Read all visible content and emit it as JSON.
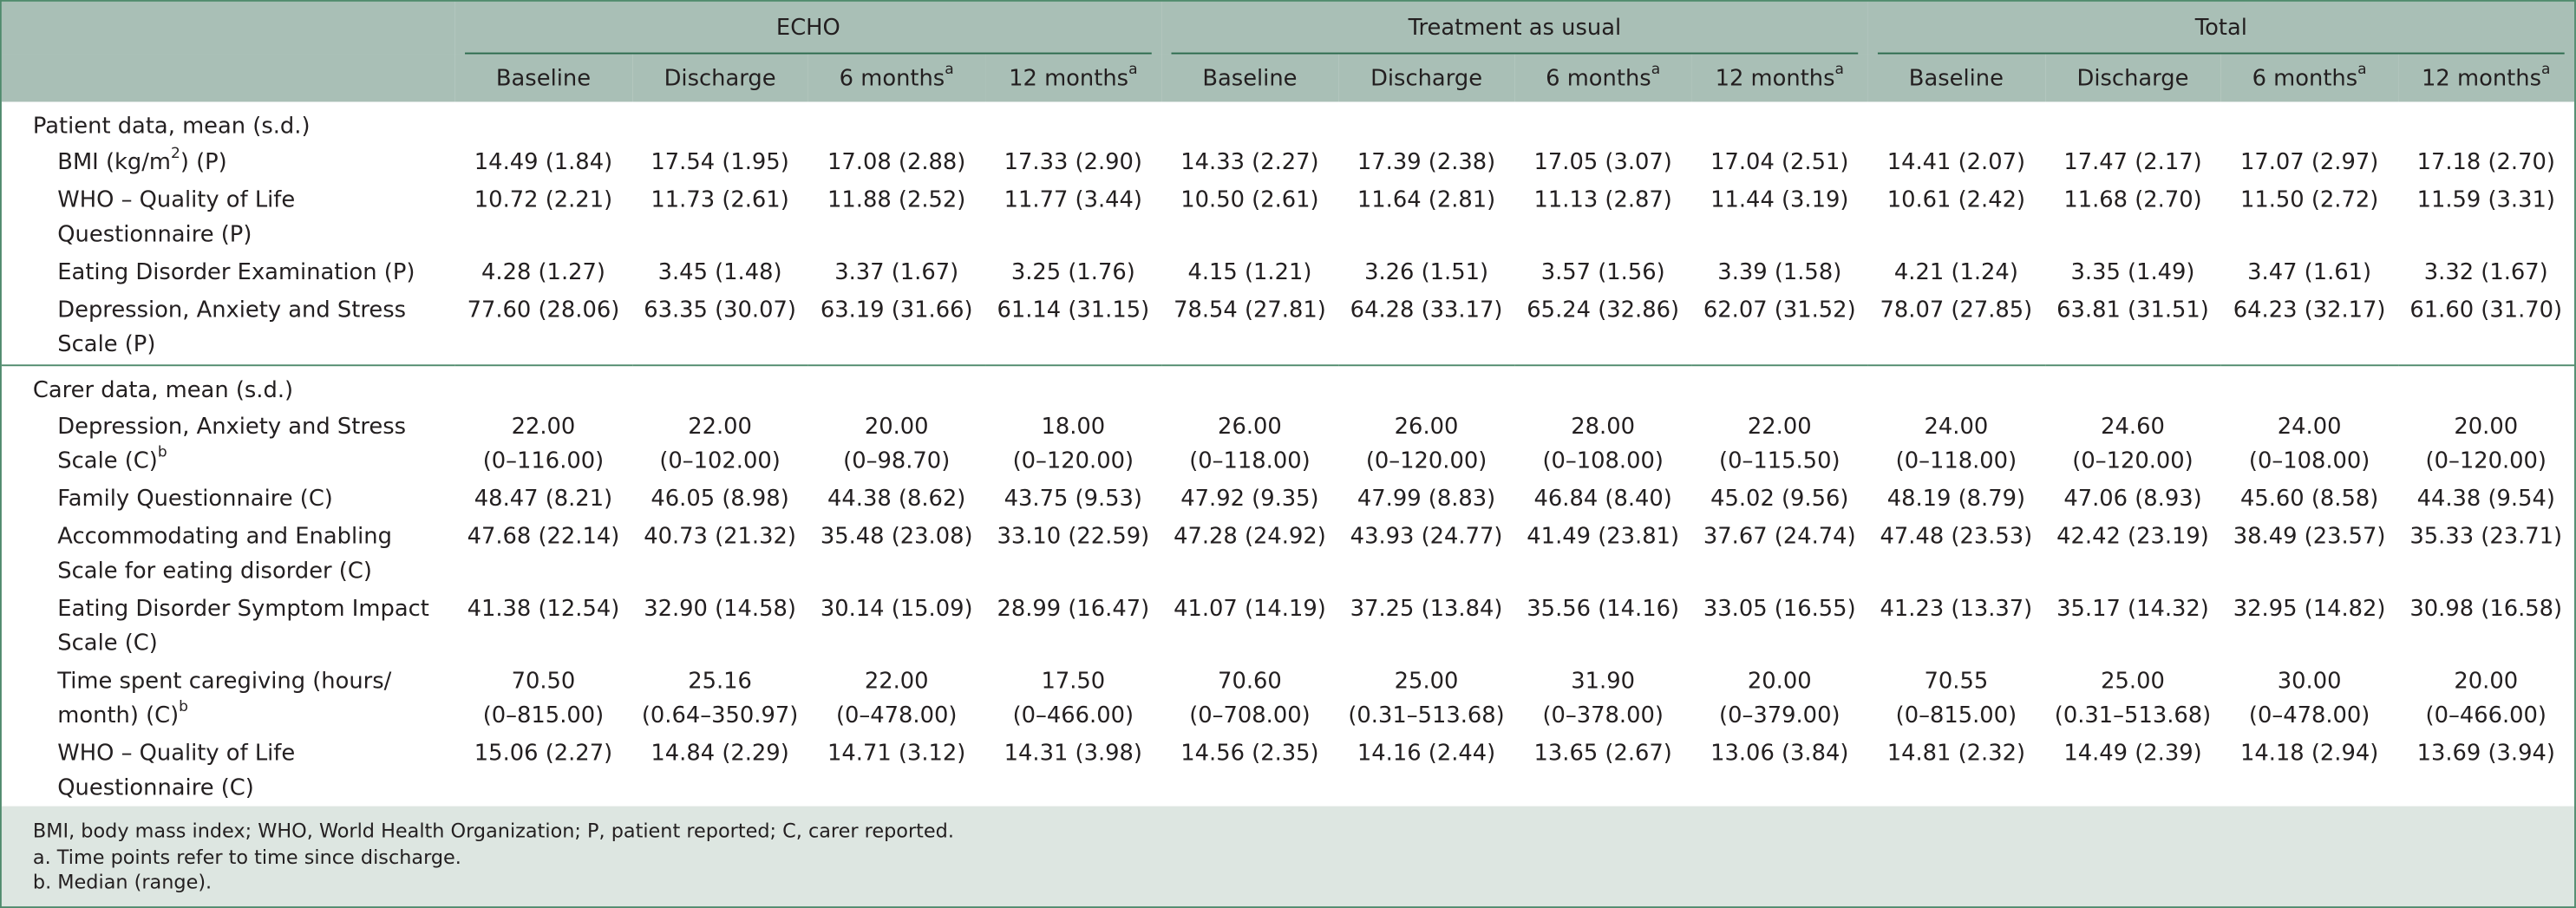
{
  "table": {
    "groups": [
      {
        "name": "ECHO",
        "columns": [
          {
            "text": "Baseline"
          },
          {
            "text": "Discharge"
          },
          {
            "text": "6 months",
            "sup": "a"
          },
          {
            "text": "12 months",
            "sup": "a"
          }
        ]
      },
      {
        "name": "Treatment as usual",
        "columns": [
          {
            "text": "Baseline"
          },
          {
            "text": "Discharge"
          },
          {
            "text": "6 months",
            "sup": "a"
          },
          {
            "text": "12 months",
            "sup": "a"
          }
        ]
      },
      {
        "name": "Total",
        "columns": [
          {
            "text": "Baseline"
          },
          {
            "text": "Discharge"
          },
          {
            "text": "6 months",
            "sup": "a"
          },
          {
            "text": "12 months",
            "sup": "a"
          }
        ]
      }
    ],
    "sections": [
      {
        "title": "Patient data, mean (s.d.)",
        "rows": [
          {
            "label": [
              [
                {
                  "text": "BMI (kg/m"
                },
                {
                  "sup": "2"
                },
                {
                  "text": ") (P)"
                }
              ]
            ],
            "cells": [
              [
                "14.49 (1.84)"
              ],
              [
                "17.54 (1.95)"
              ],
              [
                "17.08 (2.88)"
              ],
              [
                "17.33 (2.90)"
              ],
              [
                "14.33 (2.27)"
              ],
              [
                "17.39 (2.38)"
              ],
              [
                "17.05 (3.07)"
              ],
              [
                "17.04 (2.51)"
              ],
              [
                "14.41 (2.07)"
              ],
              [
                "17.47 (2.17)"
              ],
              [
                "17.07 (2.97)"
              ],
              [
                "17.18 (2.70)"
              ]
            ]
          },
          {
            "label": [
              [
                {
                  "text": "WHO – Quality of Life"
                }
              ],
              [
                {
                  "text": "Questionnaire (P)"
                }
              ]
            ],
            "cells": [
              [
                "10.72 (2.21)"
              ],
              [
                "11.73 (2.61)"
              ],
              [
                "11.88 (2.52)"
              ],
              [
                "11.77 (3.44)"
              ],
              [
                "10.50 (2.61)"
              ],
              [
                "11.64 (2.81)"
              ],
              [
                "11.13 (2.87)"
              ],
              [
                "11.44 (3.19)"
              ],
              [
                "10.61 (2.42)"
              ],
              [
                "11.68 (2.70)"
              ],
              [
                "11.50 (2.72)"
              ],
              [
                "11.59 (3.31)"
              ]
            ]
          },
          {
            "label": [
              [
                {
                  "text": "Eating Disorder Examination (P)"
                }
              ]
            ],
            "cells": [
              [
                "4.28 (1.27)"
              ],
              [
                "3.45 (1.48)"
              ],
              [
                "3.37 (1.67)"
              ],
              [
                "3.25 (1.76)"
              ],
              [
                "4.15 (1.21)"
              ],
              [
                "3.26 (1.51)"
              ],
              [
                "3.57 (1.56)"
              ],
              [
                "3.39 (1.58)"
              ],
              [
                "4.21 (1.24)"
              ],
              [
                "3.35 (1.49)"
              ],
              [
                "3.47 (1.61)"
              ],
              [
                "3.32 (1.67)"
              ]
            ]
          },
          {
            "label": [
              [
                {
                  "text": "Depression, Anxiety and Stress"
                }
              ],
              [
                {
                  "text": "Scale (P)"
                }
              ]
            ],
            "cells": [
              [
                "77.60 (28.06)"
              ],
              [
                "63.35 (30.07)"
              ],
              [
                "63.19 (31.66)"
              ],
              [
                "61.14 (31.15)"
              ],
              [
                "78.54 (27.81)"
              ],
              [
                "64.28 (33.17)"
              ],
              [
                "65.24 (32.86)"
              ],
              [
                "62.07 (31.52)"
              ],
              [
                "78.07 (27.85)"
              ],
              [
                "63.81 (31.51)"
              ],
              [
                "64.23 (32.17)"
              ],
              [
                "61.60 (31.70)"
              ]
            ]
          }
        ]
      },
      {
        "title": "Carer data, mean (s.d.)",
        "rows": [
          {
            "label": [
              [
                {
                  "text": "Depression, Anxiety and Stress"
                }
              ],
              [
                {
                  "text": "Scale (C)"
                },
                {
                  "sup": "b"
                }
              ]
            ],
            "cells": [
              [
                "22.00",
                "(0–116.00)"
              ],
              [
                "22.00",
                "(0–102.00)"
              ],
              [
                "20.00",
                "(0–98.70)"
              ],
              [
                "18.00",
                "(0–120.00)"
              ],
              [
                "26.00",
                "(0–118.00)"
              ],
              [
                "26.00",
                "(0–120.00)"
              ],
              [
                "28.00",
                "(0–108.00)"
              ],
              [
                "22.00",
                "(0–115.50)"
              ],
              [
                "24.00",
                "(0–118.00)"
              ],
              [
                "24.60",
                "(0–120.00)"
              ],
              [
                "24.00",
                "(0–108.00)"
              ],
              [
                "20.00",
                "(0–120.00)"
              ]
            ]
          },
          {
            "label": [
              [
                {
                  "text": "Family Questionnaire (C)"
                }
              ]
            ],
            "cells": [
              [
                "48.47 (8.21)"
              ],
              [
                "46.05 (8.98)"
              ],
              [
                "44.38 (8.62)"
              ],
              [
                "43.75 (9.53)"
              ],
              [
                "47.92 (9.35)"
              ],
              [
                "47.99 (8.83)"
              ],
              [
                "46.84 (8.40)"
              ],
              [
                "45.02 (9.56)"
              ],
              [
                "48.19 (8.79)"
              ],
              [
                "47.06 (8.93)"
              ],
              [
                "45.60 (8.58)"
              ],
              [
                "44.38 (9.54)"
              ]
            ]
          },
          {
            "label": [
              [
                {
                  "text": "Accommodating and Enabling"
                }
              ],
              [
                {
                  "text": "Scale for eating disorder (C)"
                }
              ]
            ],
            "cells": [
              [
                "47.68 (22.14)"
              ],
              [
                "40.73 (21.32)"
              ],
              [
                "35.48 (23.08)"
              ],
              [
                "33.10 (22.59)"
              ],
              [
                "47.28 (24.92)"
              ],
              [
                "43.93 (24.77)"
              ],
              [
                "41.49 (23.81)"
              ],
              [
                "37.67 (24.74)"
              ],
              [
                "47.48 (23.53)"
              ],
              [
                "42.42 (23.19)"
              ],
              [
                "38.49 (23.57)"
              ],
              [
                "35.33 (23.71)"
              ]
            ]
          },
          {
            "label": [
              [
                {
                  "text": "Eating Disorder Symptom Impact"
                }
              ],
              [
                {
                  "text": "Scale (C)"
                }
              ]
            ],
            "cells": [
              [
                "41.38 (12.54)"
              ],
              [
                "32.90 (14.58)"
              ],
              [
                "30.14 (15.09)"
              ],
              [
                "28.99 (16.47)"
              ],
              [
                "41.07 (14.19)"
              ],
              [
                "37.25 (13.84)"
              ],
              [
                "35.56 (14.16)"
              ],
              [
                "33.05 (16.55)"
              ],
              [
                "41.23 (13.37)"
              ],
              [
                "35.17 (14.32)"
              ],
              [
                "32.95 (14.82)"
              ],
              [
                "30.98 (16.58)"
              ]
            ]
          },
          {
            "label": [
              [
                {
                  "text": "Time spent caregiving (hours/"
                }
              ],
              [
                {
                  "text": "month) (C)"
                },
                {
                  "sup": "b"
                }
              ]
            ],
            "cells": [
              [
                "70.50",
                "(0–815.00)"
              ],
              [
                "25.16",
                "(0.64–350.97)"
              ],
              [
                "22.00",
                "(0–478.00)"
              ],
              [
                "17.50",
                "(0–466.00)"
              ],
              [
                "70.60",
                "(0–708.00)"
              ],
              [
                "25.00",
                "(0.31–513.68)"
              ],
              [
                "31.90",
                "(0–378.00)"
              ],
              [
                "20.00",
                "(0–379.00)"
              ],
              [
                "70.55",
                "(0–815.00)"
              ],
              [
                "25.00",
                "(0.31–513.68)"
              ],
              [
                "30.00",
                "(0–478.00)"
              ],
              [
                "20.00",
                "(0–466.00)"
              ]
            ]
          },
          {
            "label": [
              [
                {
                  "text": "WHO – Quality of Life"
                }
              ],
              [
                {
                  "text": "Questionnaire (C)"
                }
              ]
            ],
            "cells": [
              [
                "15.06 (2.27)"
              ],
              [
                "14.84 (2.29)"
              ],
              [
                "14.71 (3.12)"
              ],
              [
                "14.31 (3.98)"
              ],
              [
                "14.56 (2.35)"
              ],
              [
                "14.16 (2.44)"
              ],
              [
                "13.65 (2.67)"
              ],
              [
                "13.06 (3.84)"
              ],
              [
                "14.81 (2.32)"
              ],
              [
                "14.49 (2.39)"
              ],
              [
                "14.18 (2.94)"
              ],
              [
                "13.69 (3.94)"
              ]
            ]
          }
        ]
      }
    ],
    "notes": [
      "BMI, body mass index; WHO, World Health Organization; P, patient reported; C, carer reported.",
      "a. Time points refer to time since discharge.",
      "b. Median (range)."
    ]
  }
}
